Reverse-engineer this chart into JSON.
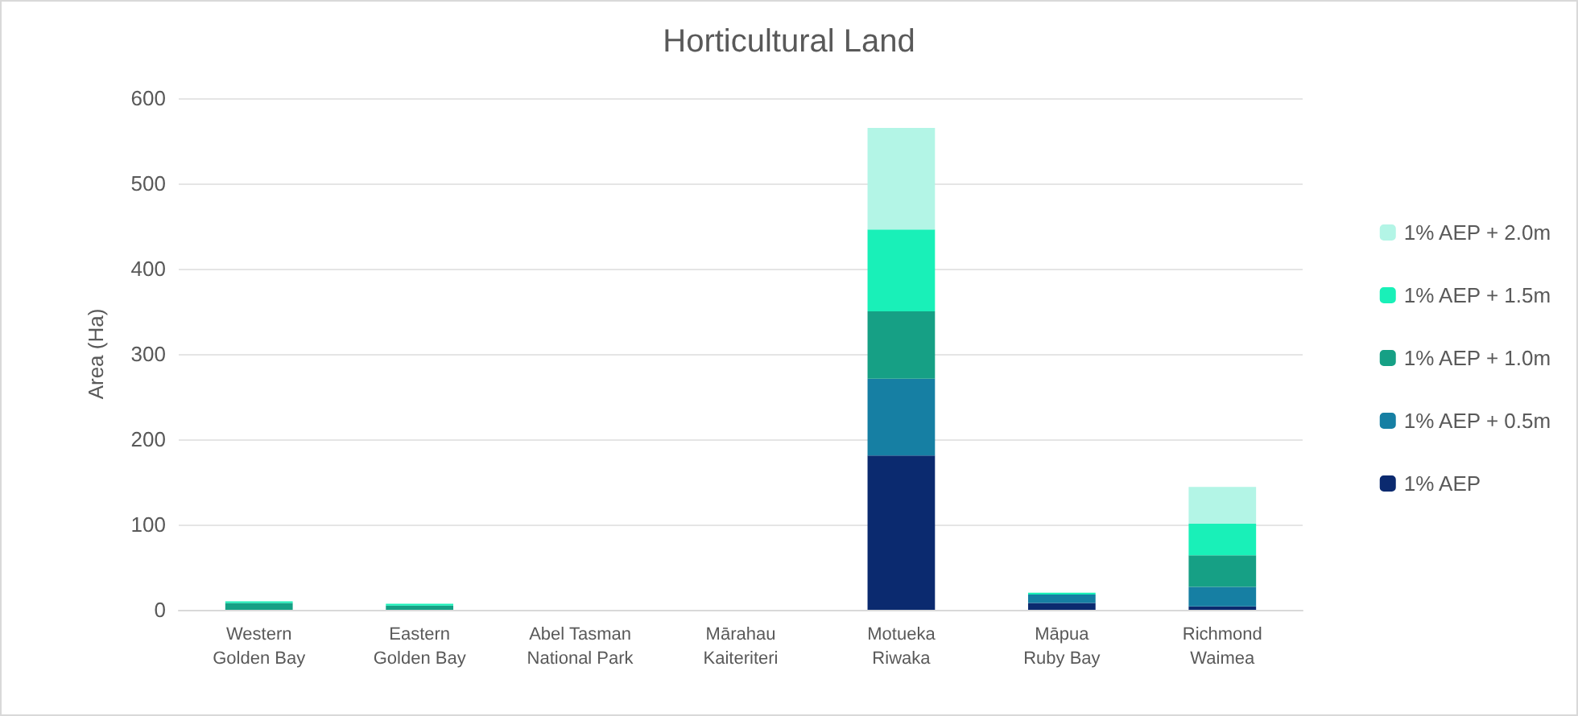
{
  "chart_data": {
    "type": "bar",
    "title": "Horticultural Land",
    "ylabel": "Area (Ha)",
    "stacked": true,
    "grid": "y",
    "legend": "right",
    "categories": [
      "Western\nGolden Bay",
      "Eastern\nGolden Bay",
      "Abel Tasman\nNational Park",
      "Mārahau\nKaiteriteri",
      "Motueka\nRiwaka",
      "Māpua\nRuby Bay",
      "Richmond\nWaimea"
    ],
    "ylim": [
      0,
      600
    ],
    "yticks": [
      0,
      100,
      200,
      300,
      400,
      500,
      600
    ],
    "series": [
      {
        "name": "1% AEP",
        "color": "#0b2a6f",
        "values": [
          null,
          null,
          0,
          0,
          181,
          8,
          4
        ]
      },
      {
        "name": "1% AEP + 0.5m",
        "color": "#167fa3",
        "values": [
          null,
          null,
          0,
          0,
          90,
          10,
          23
        ]
      },
      {
        "name": "1% AEP + 1.0m",
        "color": "#16a085",
        "values": [
          8,
          5,
          0,
          0,
          79,
          null,
          37
        ]
      },
      {
        "name": "1% AEP + 1.5m",
        "color": "#19f0b8",
        "values": [
          2,
          2,
          0,
          0,
          96,
          2,
          37
        ]
      },
      {
        "name": "1% AEP + 2.0m",
        "color": "#b3f5e6",
        "values": [
          null,
          null,
          0,
          0,
          119,
          null,
          43
        ]
      }
    ]
  }
}
